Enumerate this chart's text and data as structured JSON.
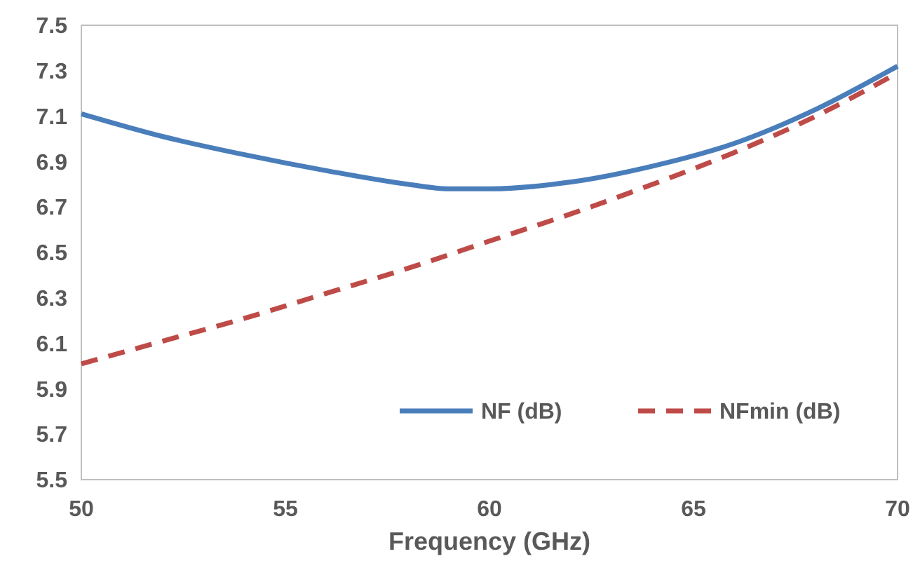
{
  "chart_data": {
    "type": "line",
    "xlabel": "Frequency (GHz)",
    "xlim": [
      50,
      70
    ],
    "xticks": [
      50,
      55,
      60,
      65,
      70
    ],
    "ylim": [
      5.5,
      7.5
    ],
    "yticks": [
      5.5,
      5.7,
      5.9,
      6.1,
      6.3,
      6.5,
      6.7,
      6.9,
      7.1,
      7.3,
      7.5
    ],
    "grid": false,
    "legend": "bottom right",
    "series": [
      {
        "name": "NF (dB)",
        "color": "#4a7ebb",
        "line_style": "solid",
        "x": [
          50,
          52,
          54,
          56,
          58,
          59,
          60,
          62,
          64,
          66,
          68,
          70
        ],
        "values": [
          7.11,
          7.01,
          6.93,
          6.86,
          6.8,
          6.78,
          6.78,
          6.81,
          6.88,
          6.98,
          7.13,
          7.32
        ]
      },
      {
        "name": "NFmin (dB)",
        "color": "#be4b48",
        "line_style": "dashed",
        "x": [
          50,
          52,
          54,
          56,
          58,
          60,
          62,
          64,
          66,
          68,
          70
        ],
        "values": [
          6.01,
          6.11,
          6.21,
          6.32,
          6.43,
          6.55,
          6.67,
          6.8,
          6.94,
          7.1,
          7.29
        ]
      }
    ]
  }
}
